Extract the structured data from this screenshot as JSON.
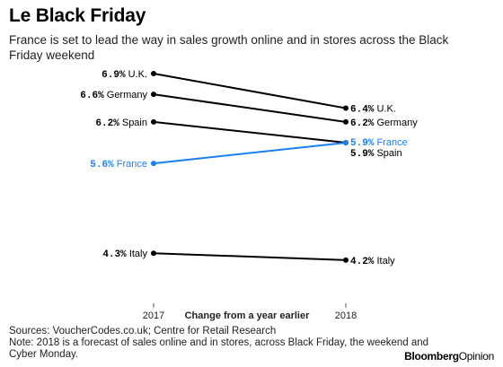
{
  "title": "Le Black Friday",
  "subtitle": "France is set to lead the way in sales growth online and in stores across the Black Friday weekend",
  "chart_data": {
    "type": "slope",
    "x": [
      "2017",
      "2018"
    ],
    "xlabel": "Change from a year earlier",
    "unit": "%",
    "series": [
      {
        "name": "U.K.",
        "values": [
          6.9,
          6.4
        ],
        "labels": [
          "6.9%",
          "6.4%"
        ],
        "color": "#000000"
      },
      {
        "name": "Germany",
        "values": [
          6.6,
          6.2
        ],
        "labels": [
          "6.6%",
          "6.2%"
        ],
        "color": "#000000"
      },
      {
        "name": "Spain",
        "values": [
          6.2,
          5.9
        ],
        "labels": [
          "6.2%",
          "5.9%"
        ],
        "color": "#000000"
      },
      {
        "name": "France",
        "values": [
          5.6,
          5.9
        ],
        "labels": [
          "5.6%",
          "5.9%"
        ],
        "color": "#1a7ef0",
        "highlight": true
      },
      {
        "name": "Italy",
        "values": [
          4.3,
          4.2
        ],
        "labels": [
          "4.3%",
          "4.2%"
        ],
        "color": "#000000"
      }
    ]
  },
  "footer": {
    "sources": "Sources: VoucherCodes.co.uk; Centre for Retail Research",
    "note_line1": "Note: 2018 is a forecast of sales online and in stores, across Black Friday, the weekend and",
    "note_line2": "Cyber Monday."
  },
  "brand": {
    "part1": "Bloomberg",
    "part2": "Opinion"
  }
}
